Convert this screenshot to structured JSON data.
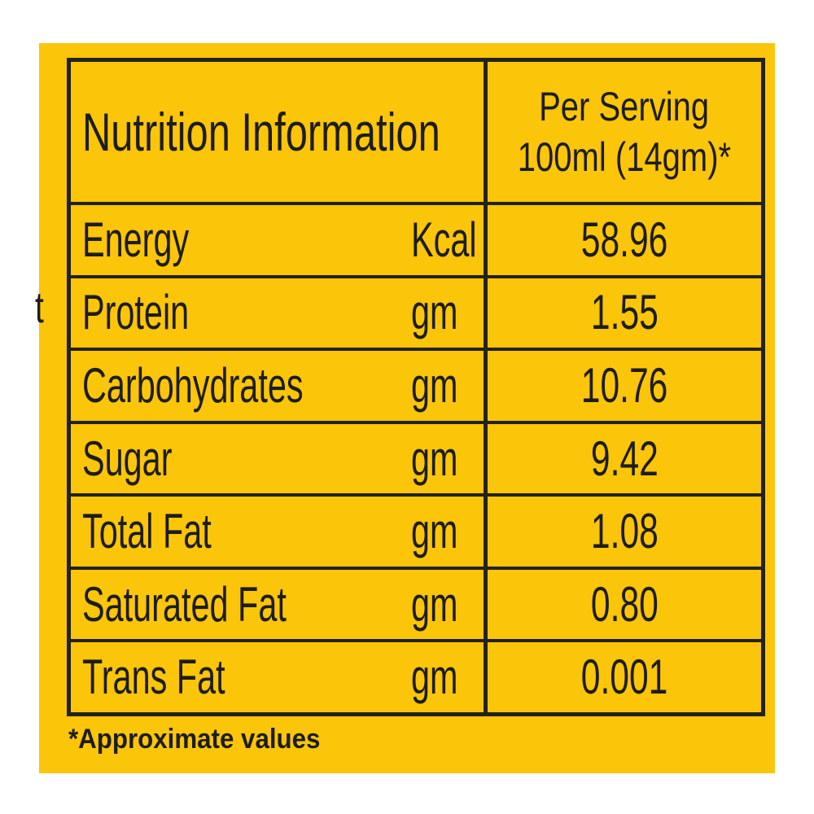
{
  "colors": {
    "panel_bg": "#FBC50A",
    "border_ink": "#23221C",
    "text_ink": "#1D1D1A",
    "page_bg": "#FFFFFF"
  },
  "table": {
    "header": {
      "title": "Nutrition Information",
      "serving_line1": "Per Serving",
      "serving_line2": "100ml (14gm)*"
    },
    "rows": [
      {
        "label": "Energy",
        "unit": "Kcal",
        "value": "58.96"
      },
      {
        "label": "Protein",
        "unit": "gm",
        "value": "1.55"
      },
      {
        "label": "Carbohydrates",
        "unit": "gm",
        "value": "10.76"
      },
      {
        "label": "Sugar",
        "unit": "gm",
        "value": "9.42"
      },
      {
        "label": "Total Fat",
        "unit": "gm",
        "value": "1.08"
      },
      {
        "label": "Saturated Fat",
        "unit": "gm",
        "value": "0.80"
      },
      {
        "label": "Trans Fat",
        "unit": "gm",
        "value": "0.001"
      }
    ],
    "footnote": "*Approximate values"
  },
  "stray_text": "t"
}
